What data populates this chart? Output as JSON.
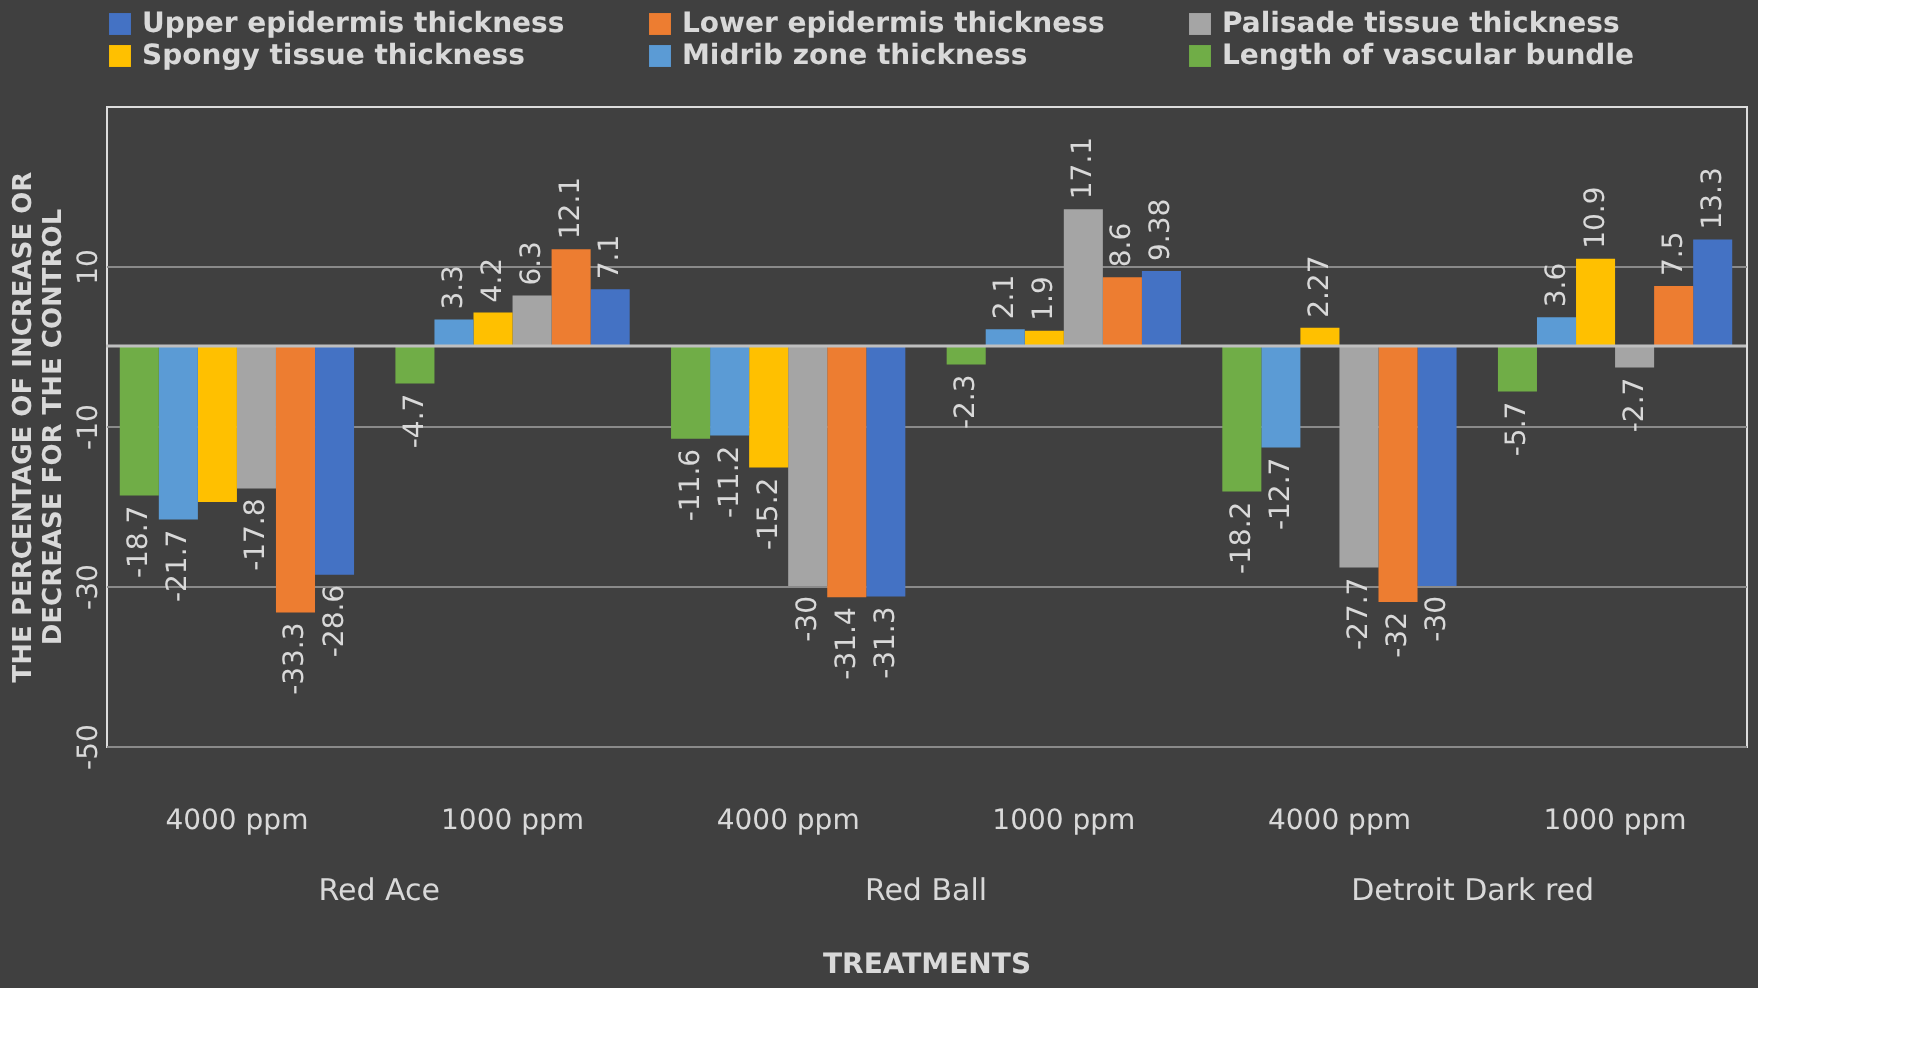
{
  "chart_data": {
    "type": "bar",
    "xlabel": "TREATMENTS",
    "ylabel": "THE PERCENTAGE OF INCREASE OR DECREASE FOR THE CONTROL",
    "categories": [
      "4000 ppm",
      "1000 ppm",
      "4000 ppm",
      "1000 ppm",
      "4000 ppm",
      "1000 ppm"
    ],
    "annotations": [
      "Red Ace",
      "Red Ball",
      "Detroit Dark red"
    ],
    "series": [
      {
        "name": "Upper epidermis thickness",
        "color": "#4472c4",
        "values": [
          -28.6,
          7.1,
          -31.3,
          9.38,
          -30,
          13.3
        ],
        "value_labels": [
          "-28.6",
          "7.1",
          "-31.3",
          "9.38",
          "-30",
          "13.3"
        ]
      },
      {
        "name": "Lower epidermis thickness",
        "color": "#ed7d31",
        "values": [
          -33.3,
          12.1,
          -31.4,
          8.6,
          -32,
          7.5
        ],
        "value_labels": [
          "-33.3",
          "12.1",
          "-31.4",
          "8.6",
          "-32",
          "7.5"
        ]
      },
      {
        "name": "Palisade tissue thickness",
        "color": "#a5a5a5",
        "values": [
          -17.8,
          6.3,
          -30,
          17.1,
          -27.7,
          -2.7
        ],
        "value_labels": [
          "-17.8",
          "6.3",
          "-30",
          "17.1",
          "-27.7",
          "-2.7"
        ]
      },
      {
        "name": "Spongy tissue thickness",
        "color": "#ffc000",
        "values": [
          -19.5,
          4.2,
          -15.2,
          1.9,
          2.27,
          10.9
        ],
        "value_labels": [
          null,
          "4.2",
          "-15.2",
          "1.9",
          "2.27",
          "10.9"
        ]
      },
      {
        "name": "Midrib zone thickness",
        "color": "#5b9bd5",
        "values": [
          -21.7,
          3.3,
          -11.2,
          2.1,
          -12.7,
          3.6
        ],
        "value_labels": [
          "-21.7",
          "3.3",
          "-11.2",
          "2.1",
          "-12.7",
          "3.6"
        ]
      },
      {
        "name": "Length of vascular bundle",
        "color": "#70ad47",
        "values": [
          -18.7,
          -4.7,
          -11.6,
          -2.3,
          -18.2,
          -5.7
        ],
        "value_labels": [
          "-18.7",
          "-4.7",
          "-11.6",
          "-2.3",
          "-18.2",
          "-5.7"
        ]
      }
    ],
    "ylim": [
      -50,
      30
    ],
    "yticks": [
      -50,
      -30,
      -10,
      10
    ],
    "grid": "y",
    "legend": "top"
  }
}
